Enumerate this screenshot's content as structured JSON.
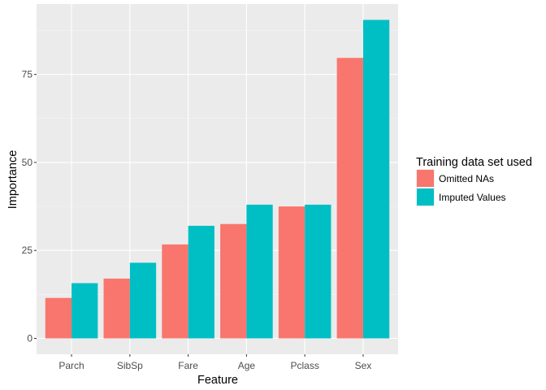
{
  "chart_data": {
    "type": "bar",
    "categories": [
      "Parch",
      "SibSp",
      "Fare",
      "Age",
      "Pclass",
      "Sex"
    ],
    "series": [
      {
        "name": "Omitted NAs",
        "color": "#F8766D",
        "values": [
          11.5,
          17.0,
          26.7,
          32.5,
          37.5,
          79.7
        ]
      },
      {
        "name": "Imputed Values",
        "color": "#00BFC4",
        "values": [
          15.7,
          21.5,
          32.0,
          38.0,
          38.0,
          90.5
        ]
      }
    ],
    "xlabel": "Feature",
    "ylabel": "Importance",
    "yticks": [
      0,
      25,
      50,
      75
    ],
    "ylim": [
      -4.5,
      95
    ],
    "legend_title": "Training data set used",
    "legend_position": "right",
    "grid": true
  }
}
